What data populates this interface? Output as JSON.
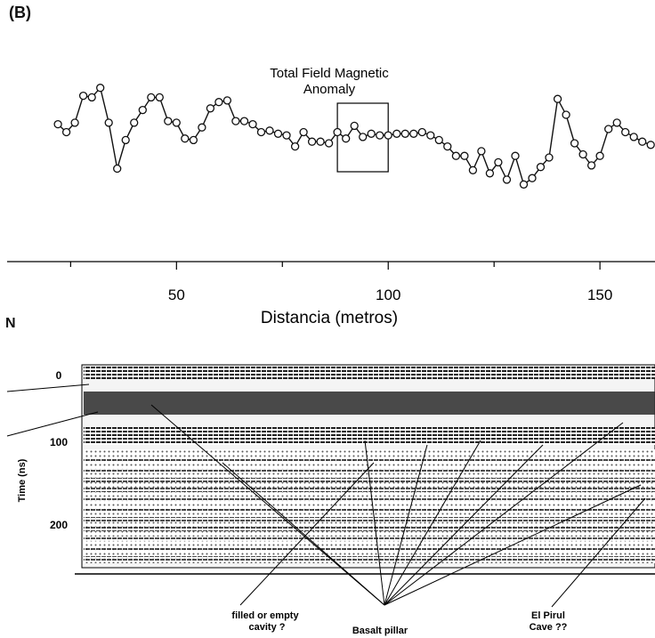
{
  "panel_label": "(B)",
  "side_letter": "N",
  "chart_data": [
    {
      "type": "line",
      "title": "Total Field Magnetic Anomaly",
      "title_lines": [
        "Total Field Magnetic",
        "Anomaly"
      ],
      "xlabel": "Distancia (metros)",
      "ylabel": "",
      "xlim": [
        10,
        163
      ],
      "ylim": [
        0,
        100
      ],
      "xticks": [
        50,
        100,
        150
      ],
      "minor_ticks": [
        25,
        75,
        125
      ],
      "grid": false,
      "marker": "circle",
      "x": [
        22,
        24,
        26,
        28,
        30,
        32,
        34,
        36,
        38,
        40,
        42,
        44,
        46,
        48,
        50,
        52,
        54,
        56,
        58,
        60,
        62,
        64,
        66,
        68,
        70,
        72,
        74,
        76,
        78,
        80,
        82,
        84,
        86,
        88,
        90,
        92,
        94,
        96,
        98,
        100,
        102,
        104,
        106,
        108,
        110,
        112,
        114,
        116,
        118,
        120,
        122,
        124,
        126,
        128,
        130,
        132,
        134,
        136,
        138,
        140,
        142,
        144,
        146,
        148,
        150,
        152,
        154,
        156,
        158,
        160,
        162
      ],
      "values": [
        62,
        57,
        63,
        80,
        79,
        85,
        63,
        34,
        52,
        63,
        71,
        79,
        79,
        64,
        63,
        53,
        52,
        60,
        72,
        76,
        77,
        64,
        64,
        62,
        57,
        58,
        56,
        55,
        48,
        57,
        51,
        51,
        50,
        57,
        53,
        61,
        54,
        56,
        55,
        55,
        56,
        56,
        56,
        57,
        55,
        52,
        48,
        42,
        42,
        33,
        45,
        31,
        38,
        27,
        42,
        24,
        28,
        35,
        41,
        78,
        68,
        50,
        43,
        36,
        42,
        59,
        63,
        57,
        54,
        51,
        49
      ],
      "inset_box": {
        "x_range": [
          88,
          100
        ]
      }
    },
    {
      "type": "image",
      "title": "",
      "ylabel": "Time (ns)",
      "ytick_labels": [
        "0",
        "100",
        "200"
      ],
      "yticks": [
        0,
        100,
        200
      ],
      "ylim": [
        -10,
        260
      ],
      "annotations": [
        "filled or empty cavity ?",
        "Basalt pillar",
        "El Pirul Cave ??"
      ],
      "annotation_lines": {
        "cavity": [
          "filled or empty",
          "cavity ?"
        ],
        "pillar": [
          "Basalt pillar"
        ],
        "cave": [
          "El Pirul",
          "Cave ??"
        ]
      }
    }
  ]
}
